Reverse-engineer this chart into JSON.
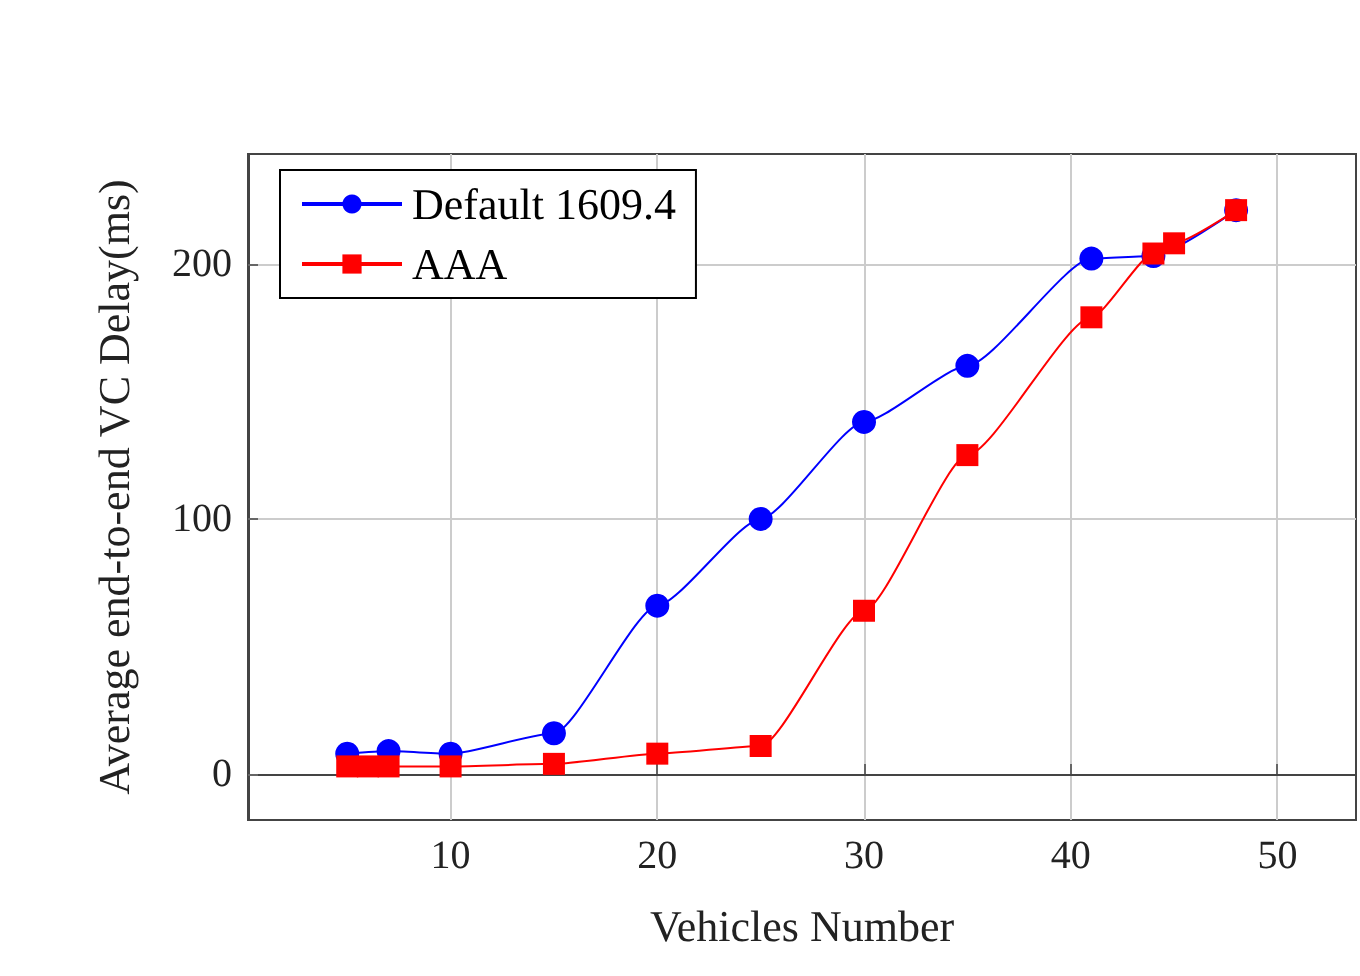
{
  "chart_data": {
    "type": "line",
    "xlabel": "Vehicles Number",
    "ylabel": "Average end-to-end VC Delay(ms)",
    "xlim": [
      0.2,
      53.8
    ],
    "xticks": [
      10,
      20,
      30,
      40,
      50
    ],
    "ylim": [
      -18,
      243
    ],
    "yticks": [
      0,
      100,
      200
    ],
    "grid": true,
    "legend": "top left",
    "line_style": "solid",
    "series": [
      {
        "name": "Default 1609.4",
        "color": "#0000ff",
        "marker": "circle",
        "x": [
          5,
          7,
          10,
          15,
          20,
          25,
          30,
          35,
          41,
          44,
          48
        ],
        "values": [
          8,
          9,
          8,
          16,
          66,
          100,
          138,
          160,
          202,
          203,
          221
        ]
      },
      {
        "name": "AAA",
        "color": "#ff0000",
        "marker": "square",
        "x": [
          5,
          6,
          7,
          10,
          15,
          20,
          25,
          30,
          35,
          41,
          44,
          45,
          48
        ],
        "values": [
          3,
          3,
          3,
          3,
          4,
          8,
          11,
          64,
          125,
          179,
          204,
          208,
          221
        ]
      }
    ]
  }
}
